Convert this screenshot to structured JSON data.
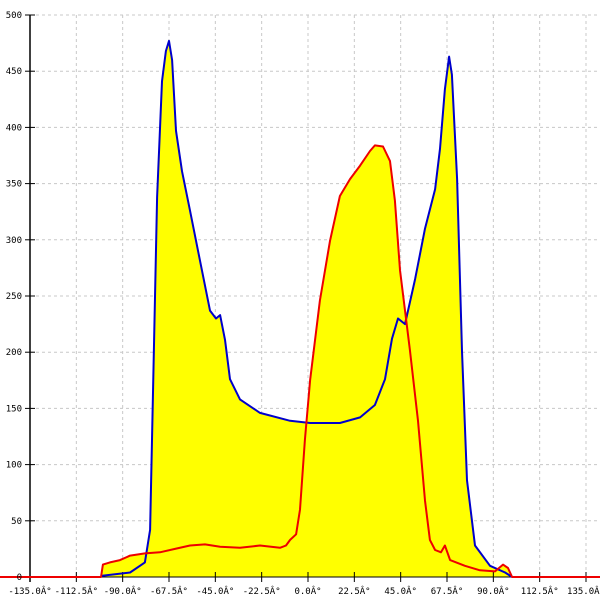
{
  "chart_data": {
    "type": "area",
    "title": "",
    "xlabel": "",
    "ylabel": "",
    "xlim": [
      -135,
      135
    ],
    "ylim": [
      0,
      500
    ],
    "grid": true,
    "x_ticks": [
      -135,
      -112.5,
      -90,
      -67.5,
      -45,
      -22.5,
      0,
      22.5,
      45,
      67.5,
      90,
      112.5,
      135
    ],
    "x_tick_labels": [
      "-135.0Â°",
      "-112.5Â°",
      "-90.0Â°",
      "-67.5Â°",
      "-45.0Â°",
      "-22.5Â°",
      "0.0Â°",
      "22.5Â°",
      "45.0Â°",
      "67.5Â°",
      "90.0Â°",
      "112.5Â°",
      "135.0Â°"
    ],
    "y_ticks": [
      0,
      50,
      100,
      150,
      200,
      250,
      300,
      350,
      400,
      450,
      500
    ],
    "y_tick_labels": [
      "0",
      "50",
      "100",
      "150",
      "200",
      "250",
      "300",
      "350",
      "400",
      "450",
      "500"
    ],
    "fill_color": "#ffff00",
    "series": [
      {
        "color": "#0000cc",
        "x": [
          -100.5,
          -86.4,
          -79.2,
          -76.7,
          -75.3,
          -73.3,
          -70.9,
          -69.0,
          -67.5,
          -66.0,
          -64.1,
          -61.2,
          -57.3,
          -52.4,
          -47.6,
          -44.7,
          -42.7,
          -40.3,
          -37.9,
          -33.0,
          -23.3,
          -8.7,
          1.0,
          15.5,
          25.3,
          32.5,
          37.4,
          40.8,
          43.7,
          47.1,
          52.0,
          56.8,
          61.7,
          64.1,
          66.5,
          68.5,
          69.9,
          72.4,
          74.8,
          77.2,
          81.1,
          88.4,
          95.7,
          99.1
        ],
        "y": [
          1,
          4,
          13,
          42,
          160,
          338,
          441,
          468,
          477,
          460,
          397,
          361,
          326,
          281,
          237,
          230,
          233,
          211,
          176,
          158,
          146,
          139,
          137,
          137,
          142,
          153,
          176,
          212,
          230,
          225,
          265,
          310,
          345,
          381,
          434,
          463,
          447,
          354,
          201,
          86,
          28,
          10,
          4,
          0
        ]
      },
      {
        "color": "#ee0000",
        "x": [
          -135,
          -100.5,
          -99.6,
          -96.2,
          -91.3,
          -86.4,
          -79.2,
          -71.9,
          -64.6,
          -57.3,
          -50.0,
          -42.7,
          -33.0,
          -23.3,
          -13.6,
          -10.7,
          -8.7,
          -5.8,
          -3.9,
          -1.5,
          1.0,
          5.8,
          10.7,
          15.5,
          20.4,
          25.3,
          30.1,
          32.5,
          36.4,
          39.8,
          42.2,
          44.7,
          49.5,
          53.4,
          56.8,
          59.2,
          61.7,
          64.6,
          66.5,
          69.0,
          76.2,
          83.5,
          90.8,
          94.7,
          97.1,
          99.1,
          135
        ],
        "y": [
          0,
          0,
          11,
          13,
          15,
          19,
          21,
          22,
          25,
          28,
          29,
          27,
          26,
          28,
          26,
          28,
          33,
          38,
          60,
          122,
          175,
          246,
          299,
          339,
          354,
          366,
          379,
          384,
          383,
          370,
          335,
          273,
          202,
          139,
          68,
          33,
          24,
          22,
          28,
          15,
          10,
          6,
          5,
          11,
          8,
          0,
          0
        ]
      }
    ]
  }
}
